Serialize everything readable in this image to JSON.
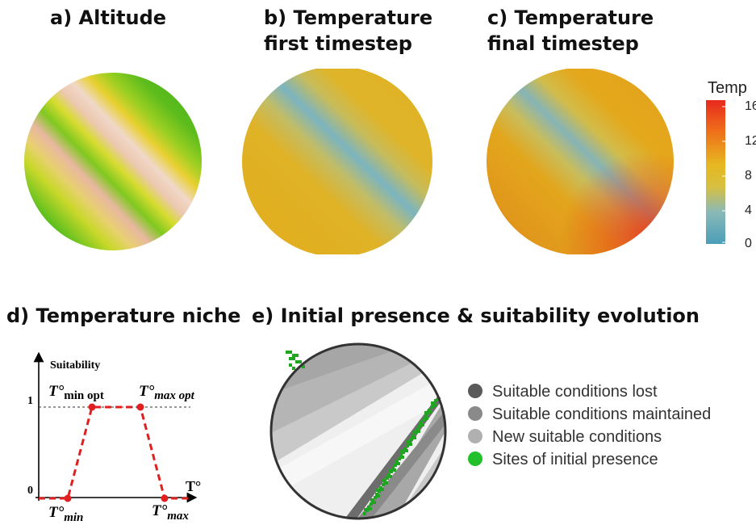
{
  "panels": {
    "a": {
      "title": "a) Altitude"
    },
    "b": {
      "title_line1": "b) Temperature",
      "title_line2": "first timestep"
    },
    "c": {
      "title_line1": "c) Temperature",
      "title_line2": "final timestep"
    },
    "d": {
      "title": "d) Temperature niche",
      "y_axis_label": "Suitability",
      "x_axis_label": "T°",
      "y_tick_1": "1",
      "y_tick_0": "0",
      "t_min_opt": {
        "base": "T°",
        "sub": "min opt"
      },
      "t_max_opt": {
        "base": "T°",
        "sub": "max opt"
      },
      "t_min": {
        "base": "T°",
        "sub": "min"
      },
      "t_max": {
        "base": "T°",
        "sub": "max"
      }
    },
    "e": {
      "title": "e) Initial presence & suitability evolution"
    }
  },
  "temp_legend": {
    "title": "Temp",
    "ticks": [
      "16",
      "12",
      "8",
      "4",
      "0"
    ],
    "colors": [
      "#e8281e",
      "#f07a1a",
      "#e6b820",
      "#d7c040",
      "#8ab9b8",
      "#4a9eb8"
    ]
  },
  "suitability_legend": {
    "items": [
      {
        "label": "Suitable conditions lost",
        "color": "#5a5a5a"
      },
      {
        "label": "Suitable conditions maintained",
        "color": "#8a8a8a"
      },
      {
        "label": "New suitable conditions",
        "color": "#b0b0b0"
      },
      {
        "label": "Sites of initial presence",
        "color": "#22c02a"
      }
    ]
  },
  "niche_curve": {
    "x_unit": "T°",
    "points": [
      {
        "label": "T°min",
        "suitability": 0
      },
      {
        "label": "T°min opt",
        "suitability": 1
      },
      {
        "label": "T°max opt",
        "suitability": 1
      },
      {
        "label": "T°max",
        "suitability": 0
      }
    ]
  }
}
